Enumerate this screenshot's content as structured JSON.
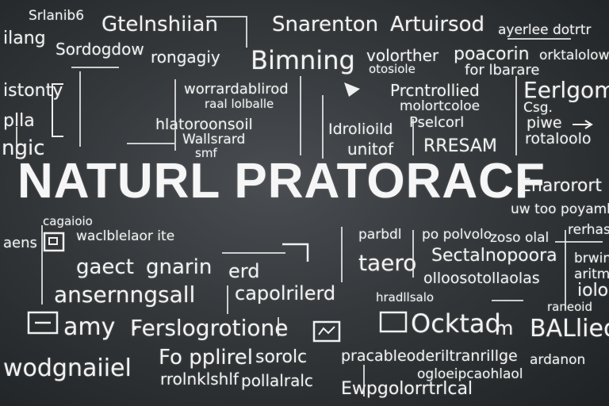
{
  "headline": "NATURL PRATORACF",
  "words": {
    "w01": "Srlanib6",
    "w02": "Gtelnshiian",
    "w03": "Snarenton",
    "w04": "Artuirsod",
    "w05": "ayerlee dotrtr",
    "w06": "ilang",
    "w07": "Sordogdow",
    "w08": "rongagiy",
    "w09": "Bimning",
    "w10": "volorther",
    "w11": "poacorin",
    "w12": "orktalolow",
    "w13": "otosiole",
    "w14": "for lbarare",
    "w15": "istonty",
    "w16": "worrardablirod",
    "w17": "raal lolballe",
    "w18": "Prcntrollied",
    "w19": "Eerlgom",
    "w20": "molortcoloe",
    "w21": "Pselcorl",
    "w22": "Csg.",
    "w23": "plla",
    "w24": "hlatoroonsoil",
    "w25": "Idrolioild",
    "w26": "piwe",
    "w27": "ngic",
    "w28": "Wallsrard",
    "w29": "smf",
    "w30": "unitof",
    "w31": "RRESAM",
    "w32": "rotaloolo",
    "w33": "Enarorort",
    "w34": "uw too poyamhor",
    "w35": "cagaioio",
    "w36": "parbdl",
    "w37": "po polvolo",
    "w38": "zoso olal",
    "w39": "rerhasl",
    "w40": "aens",
    "w41": "waclblelaor ite",
    "w42": "Sectalnopoora",
    "w43": "gaect",
    "w44": "gnarin",
    "w45": "erd",
    "w46": "taero",
    "w47": "brwin",
    "w48": "olloosotollaolas",
    "w49": "aritmoy",
    "w50": "ansernngsall",
    "w51": "capolrilerd",
    "w52": "hradllsalo",
    "w53": "iolo",
    "w54": "amy",
    "w55": "Ferslogrotione",
    "w56": "Ocktad",
    "w57": "m",
    "w58": "BALlieol",
    "w59": "raneoid",
    "w60": "Fo pplirel",
    "w61": "sorolc",
    "w62": "pracableoderiltranrillge",
    "w63": "ardanon",
    "w64": "wodgnaiiel",
    "w65": "rrolnklshlf",
    "w66": "pollalralc",
    "w67": "Ewpgolorrtrlcal",
    "w68": "ogloeipcaohlaol"
  }
}
